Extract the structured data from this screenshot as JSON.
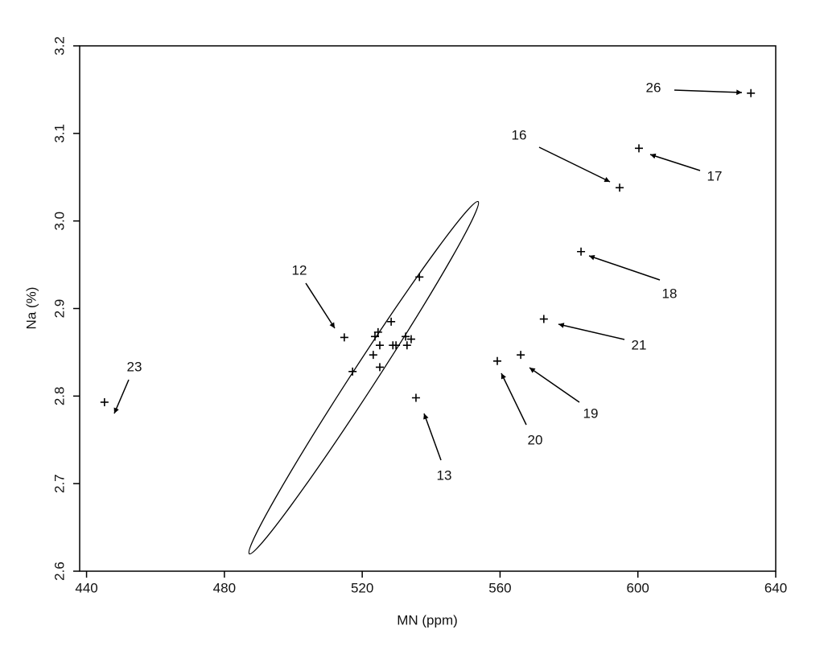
{
  "chart_data": {
    "type": "scatter",
    "x_label": "MN (ppm)",
    "y_label": "Na (%)",
    "xlim": [
      438,
      640
    ],
    "ylim": [
      2.6,
      3.2
    ],
    "xticks": [
      440,
      480,
      520,
      560,
      600,
      640
    ],
    "yticks": [
      {
        "value": 2.6,
        "label": "2.6"
      },
      2.7,
      2.8,
      2.9,
      {
        "value": 3.0,
        "label": "3.0"
      },
      3.1,
      3.2
    ],
    "color": "#000000",
    "x": [
      445.2,
      514.8,
      535.6,
      559.2,
      566.0,
      572.7,
      583.5,
      594.7,
      600.3,
      632.8,
      517.2,
      523.7,
      524.6,
      525.1,
      525.1,
      523.2,
      528.4,
      528.9,
      529.8,
      532.6,
      533.0,
      534.2,
      536.6
    ],
    "values": [
      2.793,
      2.867,
      2.798,
      2.84,
      2.847,
      2.888,
      2.965,
      3.038,
      3.083,
      3.146,
      2.828,
      2.868,
      2.873,
      2.858,
      2.833,
      2.847,
      2.885,
      2.858,
      2.858,
      2.868,
      2.858,
      2.865,
      2.936
    ],
    "annotations": [
      "23",
      "12",
      "13",
      "20",
      "19",
      "21",
      "18",
      "16",
      "17",
      "26"
    ]
  }
}
